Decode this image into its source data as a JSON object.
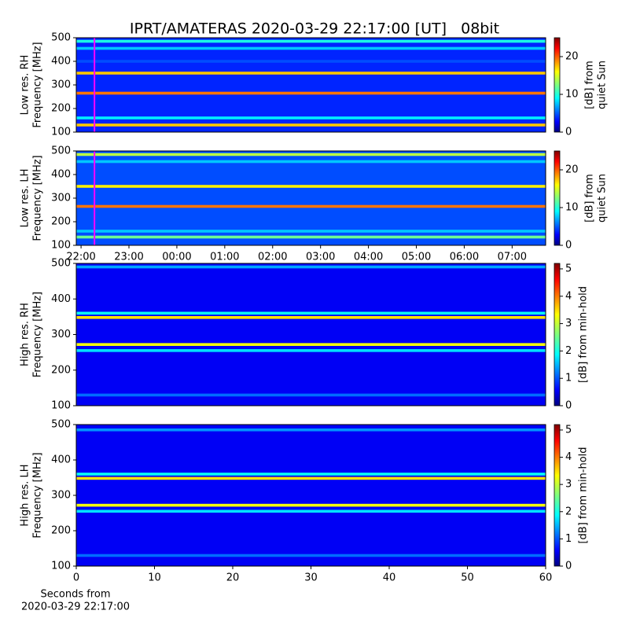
{
  "chart_data": [
    {
      "type": "spectrogram",
      "title": "IPRT/AMATERAS 2020-03-29 22:17:00 [UT]   08bit",
      "ylabel": [
        "Low res. RH",
        "Frequency [MHz]"
      ],
      "ylim": [
        100,
        500
      ],
      "yticks": [
        100,
        200,
        300,
        400,
        500
      ],
      "xlim": [
        -0.1,
        9.7
      ],
      "colormap": "jet",
      "clim": [
        0,
        25
      ],
      "cticks": [
        0,
        10,
        20
      ],
      "clabel": [
        "[dB] from",
        "quiet Sun"
      ],
      "background_level": 4,
      "band_width": 12,
      "band_freqs": [
        485,
        455,
        400,
        350,
        265,
        160,
        130
      ],
      "band_levels": [
        10,
        8,
        5,
        17,
        19,
        9,
        17
      ],
      "marker_x": 0.28,
      "marker_color": "#ff00ff"
    },
    {
      "type": "spectrogram",
      "ylabel": [
        "Low res. LH",
        "Frequency [MHz]"
      ],
      "ylim": [
        100,
        500
      ],
      "yticks": [
        100,
        200,
        300,
        400,
        500
      ],
      "xlim": [
        -0.1,
        9.7
      ],
      "xticks": [
        {
          "value": 0,
          "label": "22:00"
        },
        {
          "value": 1,
          "label": "23:00"
        },
        {
          "value": 2,
          "label": "00:00"
        },
        {
          "value": 3,
          "label": "01:00"
        },
        {
          "value": 4,
          "label": "02:00"
        },
        {
          "value": 5,
          "label": "03:00"
        },
        {
          "value": 6,
          "label": "04:00"
        },
        {
          "value": 7,
          "label": "05:00"
        },
        {
          "value": 8,
          "label": "06:00"
        },
        {
          "value": 9,
          "label": "07:00"
        }
      ],
      "colormap": "jet",
      "clim": [
        0,
        25
      ],
      "cticks": [
        0,
        10,
        20
      ],
      "clabel": [
        "[dB] from",
        "quiet Sun"
      ],
      "background_level": 5,
      "band_width": 12,
      "band_freqs": [
        485,
        455,
        350,
        265,
        160,
        135
      ],
      "band_levels": [
        14,
        8,
        16,
        19,
        8,
        12
      ],
      "marker_x": 0.28,
      "marker_color": "#ff00ff"
    },
    {
      "type": "spectrogram",
      "ylabel": [
        "High res. RH",
        "Frequency [MHz]"
      ],
      "ylim": [
        100,
        500
      ],
      "yticks": [
        100,
        200,
        300,
        400,
        500
      ],
      "xlim": [
        0,
        60
      ],
      "colormap": "jet",
      "clim": [
        0,
        5.2
      ],
      "cticks": [
        0,
        1,
        2,
        3,
        4,
        5
      ],
      "clabel": [
        "[dB] from min-hold"
      ],
      "background_level": 0.6,
      "band_width": 8,
      "band_freqs": [
        490,
        360,
        348,
        272,
        255,
        130
      ],
      "band_levels": [
        1.5,
        2,
        3.4,
        3.2,
        1.8,
        1.2
      ]
    },
    {
      "type": "spectrogram",
      "ylabel": [
        "High res. LH",
        "Frequency [MHz]"
      ],
      "ylim": [
        100,
        500
      ],
      "yticks": [
        100,
        200,
        300,
        400,
        500
      ],
      "xlim": [
        0,
        60
      ],
      "xticks": [
        0,
        10,
        20,
        30,
        40,
        50,
        60
      ],
      "xlabel": [
        "Seconds from",
        "2020-03-29 22:17:00"
      ],
      "colormap": "jet",
      "clim": [
        0,
        5.2
      ],
      "cticks": [
        0,
        1,
        2,
        3,
        4,
        5
      ],
      "clabel": [
        "[dB] from min-hold"
      ],
      "background_level": 0.6,
      "band_width": 8,
      "band_freqs": [
        485,
        360,
        348,
        272,
        255,
        130
      ],
      "band_levels": [
        1.4,
        2,
        3.4,
        3.2,
        1.8,
        1.2
      ]
    }
  ]
}
